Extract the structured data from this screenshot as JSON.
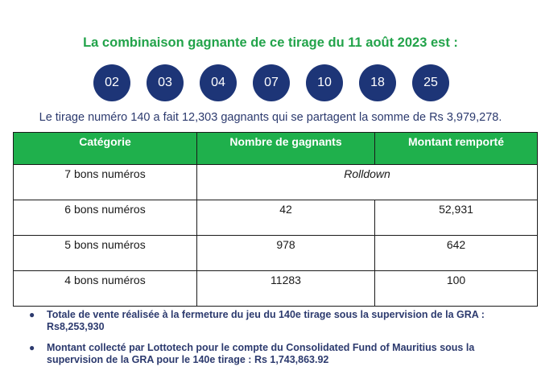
{
  "headline": "La combinaison gagnante de ce tirage du 11 août 2023 est :",
  "balls": [
    "02",
    "03",
    "04",
    "07",
    "10",
    "18",
    "25"
  ],
  "summary": "Le tirage numéro 140 a fait 12,303 gagnants qui se partagent la somme de Rs 3,979,278.",
  "table": {
    "headers": [
      "Catégorie",
      "Nombre de gagnants",
      "Montant remporté"
    ],
    "rows": [
      {
        "category": "7 bons numéros",
        "merged": "Rolldown"
      },
      {
        "category": "6 bons numéros",
        "winners": "42",
        "amount": "52,931"
      },
      {
        "category": "5 bons numéros",
        "winners": "978",
        "amount": "642"
      },
      {
        "category": "4 bons numéros",
        "winners": "11283",
        "amount": "100"
      }
    ]
  },
  "notes": [
    "Totale de vente réalisée à la fermeture du jeu du 140e tirage sous la supervision de la GRA : Rs8,253,930",
    "Montant collecté par Lottotech pour le compte du Consolidated Fund of Mauritius sous la supervision de la GRA pour le 140e tirage : Rs 1,743,863.92"
  ],
  "colors": {
    "green": "#1fb04c",
    "navy": "#1d3577",
    "text_blue": "#2c3a6e"
  }
}
